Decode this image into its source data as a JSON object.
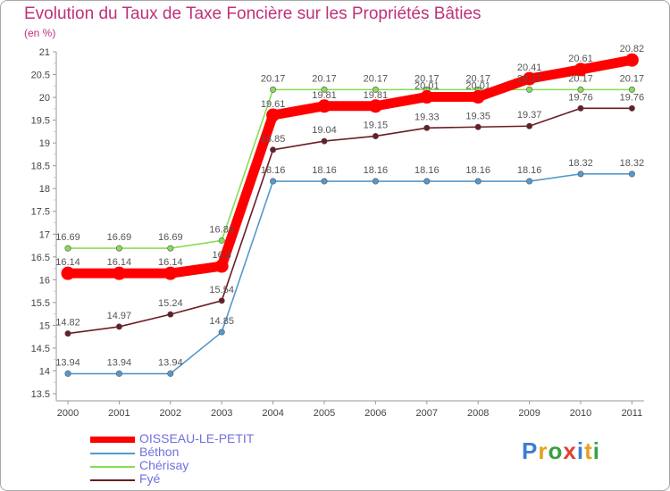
{
  "chart_data": {
    "type": "line",
    "title": "Evolution du Taux de Taxe Foncière sur les Propriétés Bâties",
    "unit_label": "(en %)",
    "xlabel": "",
    "ylabel": "",
    "grid": false,
    "ylim": [
      13.5,
      21
    ],
    "yticks": [
      "13.5",
      "14",
      "14.5",
      "15",
      "15.5",
      "16",
      "16.5",
      "17",
      "17.5",
      "18",
      "18.5",
      "19",
      "19.5",
      "20",
      "20.5",
      "21"
    ],
    "categories": [
      "2000",
      "2001",
      "2002",
      "2003",
      "2004",
      "2005",
      "2006",
      "2007",
      "2008",
      "2009",
      "2010",
      "2011"
    ],
    "series": [
      {
        "name": "OISSEAU-LE-PETIT",
        "color": "#ff0000",
        "values": [
          16.14,
          16.14,
          16.14,
          16.3,
          19.61,
          19.81,
          19.81,
          20.01,
          20.01,
          20.41,
          20.61,
          20.82
        ],
        "labels": [
          "16.14",
          "16.14",
          "16.14",
          "16.3",
          "19.61",
          "19.81",
          "19.81",
          "20.01",
          "20.01",
          "20.41",
          "20.61",
          "20.82"
        ]
      },
      {
        "name": "Béthon",
        "color": "#5599cc",
        "values": [
          13.94,
          13.94,
          13.94,
          14.85,
          18.16,
          18.16,
          18.16,
          18.16,
          18.16,
          18.16,
          18.32,
          18.32
        ],
        "labels": [
          "13.94",
          "13.94",
          "13.94",
          "14.85",
          "18.16",
          "18.16",
          "18.16",
          "18.16",
          "18.16",
          "18.16",
          "18.32",
          "18.32"
        ]
      },
      {
        "name": "Chérisay",
        "color": "#88dd55",
        "values": [
          16.69,
          16.69,
          16.69,
          16.86,
          20.17,
          20.17,
          20.17,
          20.17,
          20.17,
          20.17,
          20.17,
          20.17
        ],
        "labels": [
          "16.69",
          "16.69",
          "16.69",
          "16.86",
          "20.17",
          "20.17",
          "20.17",
          "20.17",
          "20.17",
          "20.17",
          "20.17",
          "20.17"
        ]
      },
      {
        "name": "Fyé",
        "color": "#6b1c24",
        "values": [
          14.82,
          14.97,
          15.24,
          15.54,
          18.85,
          19.04,
          19.15,
          19.33,
          19.35,
          19.37,
          19.76,
          19.76
        ],
        "labels": [
          "14.82",
          "14.97",
          "15.24",
          "15.54",
          "18.85",
          "19.04",
          "19.15",
          "19.33",
          "19.35",
          "19.37",
          "19.76",
          "19.76"
        ]
      }
    ]
  },
  "brand": {
    "logo_text": "Proxiti"
  }
}
